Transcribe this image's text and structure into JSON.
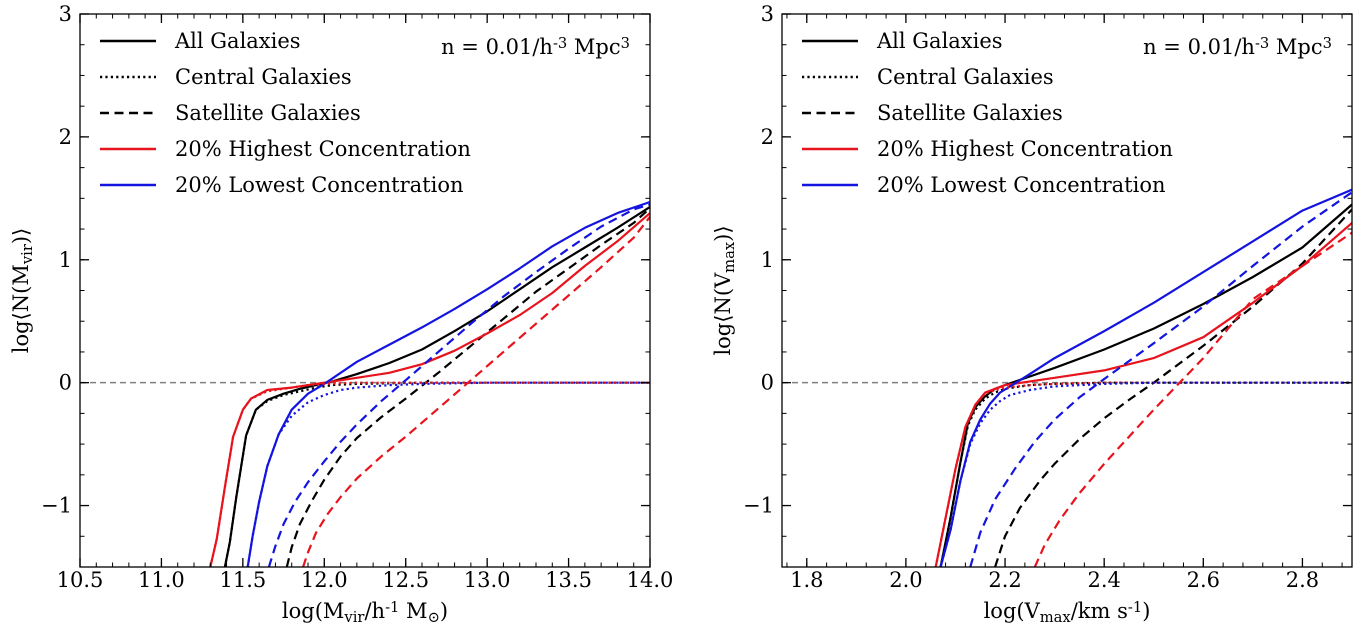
{
  "chart_data": [
    {
      "type": "line",
      "xlabel": "log(M_vir/h^-1 M_⊙)",
      "ylabel": "log⟨N(M_vir)⟩",
      "xlim": [
        10.5,
        14.0
      ],
      "ylim": [
        -1.5,
        3.0
      ],
      "xticks": [
        "10.5",
        "11.0",
        "11.5",
        "12.0",
        "12.5",
        "13.0",
        "13.5",
        "14.0"
      ],
      "yticks": [
        "−1",
        "0",
        "1",
        "2",
        "3"
      ],
      "annotation": "n = 0.01/h^-3 Mpc^3",
      "legend_position": "top-left",
      "reference_line": {
        "y": 0,
        "style": "dashed",
        "color": "#808080"
      },
      "legend": [
        {
          "label": "All Galaxies",
          "color": "#000000",
          "dash": "solid"
        },
        {
          "label": "Central Galaxies",
          "color": "#000000",
          "dash": "dotted"
        },
        {
          "label": "Satellite Galaxies",
          "color": "#000000",
          "dash": "dashed"
        },
        {
          "label": "20% Highest Concentration",
          "color": "#e8141d",
          "dash": "solid"
        },
        {
          "label": "20% Lowest Concentration",
          "color": "#1414e0",
          "dash": "solid"
        }
      ],
      "series": [
        {
          "name": "All Galaxies",
          "color": "#000000",
          "dash": "solid",
          "x": [
            11.39,
            11.42,
            11.46,
            11.52,
            11.58,
            11.65,
            11.75,
            11.85,
            11.95,
            12.05,
            12.2,
            12.4,
            12.6,
            12.8,
            13.0,
            13.2,
            13.4,
            13.6,
            13.8,
            14.0
          ],
          "y": [
            -1.5,
            -1.3,
            -0.93,
            -0.43,
            -0.22,
            -0.14,
            -0.09,
            -0.05,
            -0.02,
            0.01,
            0.07,
            0.16,
            0.27,
            0.42,
            0.58,
            0.76,
            0.94,
            1.1,
            1.26,
            1.43
          ]
        },
        {
          "name": "Central Galaxies",
          "color": "#000000",
          "dash": "dotted",
          "x": [
            11.39,
            11.42,
            11.46,
            11.52,
            11.58,
            11.65,
            11.75,
            11.85,
            11.95,
            12.05,
            12.2,
            12.4,
            12.6,
            12.8,
            13.0,
            13.5,
            14.0
          ],
          "y": [
            -1.5,
            -1.3,
            -0.93,
            -0.43,
            -0.22,
            -0.15,
            -0.1,
            -0.07,
            -0.04,
            -0.02,
            -0.01,
            -0.005,
            0.0,
            0.0,
            0.0,
            0.0,
            0.0
          ]
        },
        {
          "name": "Satellite Galaxies",
          "color": "#000000",
          "dash": "dashed",
          "x": [
            11.77,
            11.8,
            11.85,
            11.92,
            12.0,
            12.1,
            12.2,
            12.35,
            12.5,
            12.7,
            12.9,
            13.1,
            13.3,
            13.5,
            13.7,
            13.9,
            14.0
          ],
          "y": [
            -1.5,
            -1.34,
            -1.15,
            -0.97,
            -0.79,
            -0.6,
            -0.45,
            -0.28,
            -0.13,
            0.08,
            0.3,
            0.52,
            0.74,
            0.93,
            1.12,
            1.3,
            1.42
          ]
        },
        {
          "name": "20% Highest Concentration",
          "color": "#e8141d",
          "dash": "solid",
          "x": [
            11.3,
            11.34,
            11.39,
            11.44,
            11.5,
            11.55,
            11.65,
            11.8,
            11.9,
            12.0,
            12.2,
            12.4,
            12.6,
            12.8,
            13.0,
            13.2,
            13.4,
            13.6,
            13.8,
            14.0
          ],
          "y": [
            -1.5,
            -1.27,
            -0.85,
            -0.44,
            -0.22,
            -0.13,
            -0.06,
            -0.04,
            -0.02,
            0.0,
            0.04,
            0.08,
            0.15,
            0.26,
            0.4,
            0.55,
            0.73,
            0.95,
            1.15,
            1.38
          ]
        },
        {
          "name": "20% Lowest Concentration",
          "color": "#1414e0",
          "dash": "solid",
          "x": [
            11.53,
            11.56,
            11.6,
            11.65,
            11.72,
            11.8,
            11.9,
            12.0,
            12.2,
            12.4,
            12.6,
            12.8,
            13.0,
            13.2,
            13.4,
            13.6,
            13.8,
            14.0
          ],
          "y": [
            -1.5,
            -1.25,
            -0.97,
            -0.68,
            -0.42,
            -0.22,
            -0.09,
            -0.01,
            0.17,
            0.31,
            0.45,
            0.6,
            0.76,
            0.93,
            1.11,
            1.26,
            1.38,
            1.47
          ]
        },
        {
          "name": "Central Galaxies (20% Highest Concentration)",
          "color": "#e8141d",
          "dash": "dotted",
          "x": [
            11.3,
            11.34,
            11.39,
            11.44,
            11.5,
            11.55,
            11.65,
            11.8,
            11.9,
            12.0,
            12.2,
            12.5,
            13.0,
            14.0
          ],
          "y": [
            -1.5,
            -1.27,
            -0.85,
            -0.44,
            -0.22,
            -0.13,
            -0.07,
            -0.04,
            -0.02,
            -0.01,
            0.0,
            0.0,
            0.0,
            0.0
          ]
        },
        {
          "name": "Central Galaxies (20% Lowest Concentration)",
          "color": "#1414e0",
          "dash": "dotted",
          "x": [
            11.53,
            11.56,
            11.6,
            11.65,
            11.72,
            11.8,
            11.9,
            12.0,
            12.1,
            12.2,
            12.4,
            12.6,
            13.0,
            14.0
          ],
          "y": [
            -1.5,
            -1.25,
            -0.97,
            -0.68,
            -0.42,
            -0.27,
            -0.16,
            -0.1,
            -0.06,
            -0.04,
            -0.02,
            -0.01,
            0.0,
            0.0
          ]
        },
        {
          "name": "Satellite Galaxies (20% Highest Concentration)",
          "color": "#e8141d",
          "dash": "dashed",
          "x": [
            11.87,
            11.9,
            11.95,
            12.02,
            12.1,
            12.2,
            12.35,
            12.5,
            12.7,
            12.9,
            13.1,
            13.3,
            13.5,
            13.7,
            13.9,
            14.0
          ],
          "y": [
            -1.5,
            -1.38,
            -1.22,
            -1.07,
            -0.93,
            -0.78,
            -0.6,
            -0.44,
            -0.21,
            0.02,
            0.25,
            0.48,
            0.71,
            0.94,
            1.18,
            1.35
          ]
        },
        {
          "name": "Satellite Galaxies (20% Lowest Concentration)",
          "color": "#1414e0",
          "dash": "dashed",
          "x": [
            11.66,
            11.7,
            11.75,
            11.82,
            11.9,
            12.0,
            12.1,
            12.2,
            12.35,
            12.5,
            12.7,
            12.9,
            13.1,
            13.3,
            13.5,
            13.7,
            13.9,
            14.0
          ],
          "y": [
            -1.5,
            -1.33,
            -1.15,
            -0.97,
            -0.81,
            -0.64,
            -0.48,
            -0.34,
            -0.15,
            0.02,
            0.25,
            0.48,
            0.7,
            0.9,
            1.09,
            1.27,
            1.41,
            1.45
          ]
        }
      ]
    },
    {
      "type": "line",
      "xlabel": "log(V_max/km s^-1)",
      "ylabel": "log⟨N(V_max)⟩",
      "xlim": [
        1.75,
        2.9
      ],
      "ylim": [
        -1.5,
        3.0
      ],
      "xticks": [
        "1.8",
        "2.0",
        "2.2",
        "2.4",
        "2.6",
        "2.8"
      ],
      "yticks": [
        "−1",
        "0",
        "1",
        "2",
        "3"
      ],
      "annotation": "n = 0.01/h^-3 Mpc^3",
      "legend_position": "top-left",
      "reference_line": {
        "y": 0,
        "style": "dashed",
        "color": "#808080"
      },
      "legend": [
        {
          "label": "All Galaxies",
          "color": "#000000",
          "dash": "solid"
        },
        {
          "label": "Central Galaxies",
          "color": "#000000",
          "dash": "dotted"
        },
        {
          "label": "Satellite Galaxies",
          "color": "#000000",
          "dash": "dashed"
        },
        {
          "label": "20% Highest Concentration",
          "color": "#e8141d",
          "dash": "solid"
        },
        {
          "label": "20% Lowest Concentration",
          "color": "#1414e0",
          "dash": "solid"
        }
      ],
      "series": [
        {
          "name": "All Galaxies",
          "color": "#000000",
          "dash": "solid",
          "x": [
            2.07,
            2.09,
            2.11,
            2.125,
            2.14,
            2.16,
            2.18,
            2.2,
            2.25,
            2.3,
            2.4,
            2.5,
            2.6,
            2.7,
            2.8,
            2.9
          ],
          "y": [
            -1.5,
            -1.1,
            -0.65,
            -0.33,
            -0.2,
            -0.11,
            -0.05,
            -0.02,
            0.05,
            0.12,
            0.27,
            0.44,
            0.64,
            0.86,
            1.1,
            1.45
          ]
        },
        {
          "name": "Central Galaxies",
          "color": "#000000",
          "dash": "dotted",
          "x": [
            2.07,
            2.09,
            2.11,
            2.125,
            2.14,
            2.16,
            2.18,
            2.2,
            2.25,
            2.3,
            2.4,
            2.5,
            2.9
          ],
          "y": [
            -1.5,
            -1.1,
            -0.65,
            -0.35,
            -0.22,
            -0.13,
            -0.08,
            -0.05,
            -0.02,
            -0.01,
            0.0,
            0.0,
            0.0
          ]
        },
        {
          "name": "Satellite Galaxies",
          "color": "#000000",
          "dash": "dashed",
          "x": [
            2.18,
            2.2,
            2.23,
            2.27,
            2.3,
            2.35,
            2.4,
            2.45,
            2.5,
            2.6,
            2.7,
            2.8,
            2.9
          ],
          "y": [
            -1.5,
            -1.25,
            -1.02,
            -0.8,
            -0.66,
            -0.46,
            -0.29,
            -0.14,
            0.0,
            0.3,
            0.62,
            0.97,
            1.41
          ]
        },
        {
          "name": "20% Highest Concentration",
          "color": "#e8141d",
          "dash": "solid",
          "x": [
            2.06,
            2.08,
            2.1,
            2.12,
            2.14,
            2.16,
            2.18,
            2.2,
            2.3,
            2.4,
            2.5,
            2.6,
            2.7,
            2.8,
            2.9
          ],
          "y": [
            -1.5,
            -1.1,
            -0.7,
            -0.36,
            -0.18,
            -0.08,
            -0.05,
            -0.02,
            0.04,
            0.1,
            0.2,
            0.37,
            0.65,
            0.95,
            1.3
          ]
        },
        {
          "name": "20% Lowest Concentration",
          "color": "#1414e0",
          "dash": "solid",
          "x": [
            2.07,
            2.09,
            2.11,
            2.13,
            2.15,
            2.17,
            2.19,
            2.21,
            2.25,
            2.3,
            2.4,
            2.5,
            2.6,
            2.7,
            2.8,
            2.9
          ],
          "y": [
            -1.5,
            -1.2,
            -0.8,
            -0.48,
            -0.3,
            -0.17,
            -0.08,
            -0.03,
            0.07,
            0.2,
            0.42,
            0.65,
            0.9,
            1.15,
            1.4,
            1.57
          ]
        },
        {
          "name": "Central Galaxies (20% Highest Concentration)",
          "color": "#e8141d",
          "dash": "dotted",
          "x": [
            2.06,
            2.08,
            2.1,
            2.12,
            2.14,
            2.16,
            2.18,
            2.2,
            2.25,
            2.3,
            2.4,
            2.9
          ],
          "y": [
            -1.5,
            -1.1,
            -0.7,
            -0.36,
            -0.18,
            -0.09,
            -0.06,
            -0.04,
            -0.02,
            -0.01,
            0.0,
            0.0
          ]
        },
        {
          "name": "Central Galaxies (20% Lowest Concentration)",
          "color": "#1414e0",
          "dash": "dotted",
          "x": [
            2.07,
            2.09,
            2.11,
            2.13,
            2.15,
            2.17,
            2.19,
            2.21,
            2.25,
            2.3,
            2.4,
            2.5,
            2.9
          ],
          "y": [
            -1.5,
            -1.2,
            -0.8,
            -0.5,
            -0.33,
            -0.22,
            -0.15,
            -0.1,
            -0.06,
            -0.03,
            -0.01,
            0.0,
            0.0
          ]
        },
        {
          "name": "Satellite Galaxies (20% Highest Concentration)",
          "color": "#e8141d",
          "dash": "dashed",
          "x": [
            2.26,
            2.28,
            2.31,
            2.35,
            2.4,
            2.45,
            2.5,
            2.55,
            2.6,
            2.65,
            2.7,
            2.8,
            2.9
          ],
          "y": [
            -1.5,
            -1.32,
            -1.12,
            -0.9,
            -0.66,
            -0.44,
            -0.22,
            -0.01,
            0.2,
            0.44,
            0.68,
            0.95,
            1.22
          ]
        },
        {
          "name": "Satellite Galaxies (20% Lowest Concentration)",
          "color": "#1414e0",
          "dash": "dashed",
          "x": [
            2.13,
            2.15,
            2.18,
            2.22,
            2.26,
            2.3,
            2.35,
            2.4,
            2.5,
            2.6,
            2.7,
            2.8,
            2.9
          ],
          "y": [
            -1.5,
            -1.22,
            -0.95,
            -0.7,
            -0.48,
            -0.3,
            -0.12,
            0.03,
            0.32,
            0.62,
            0.95,
            1.27,
            1.55
          ]
        }
      ]
    }
  ]
}
